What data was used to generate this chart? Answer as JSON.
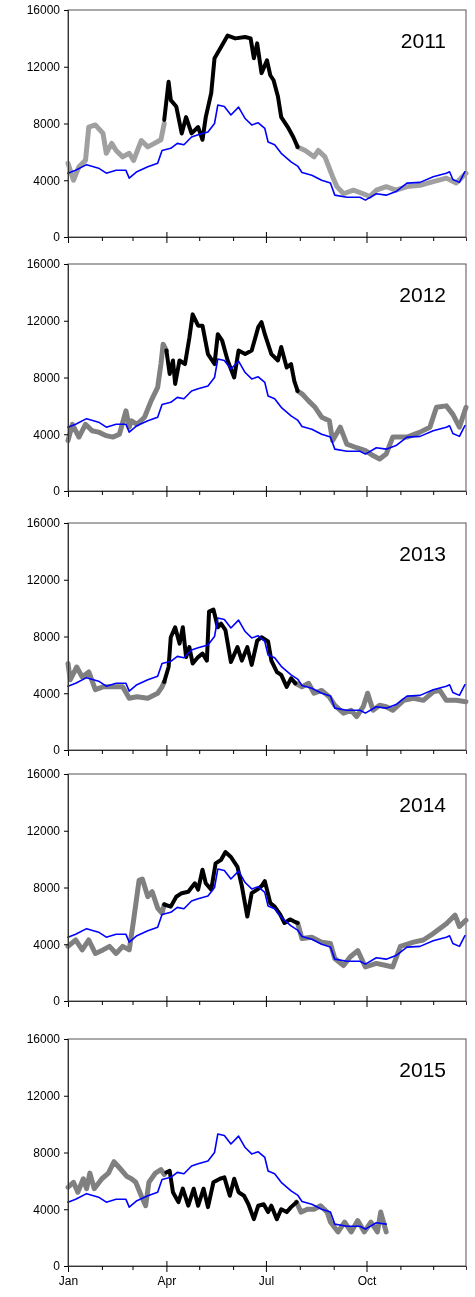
{
  "chart_data": [
    {
      "type": "line",
      "title": "2011",
      "xlim": [
        "--01-01",
        "--12-31"
      ],
      "ylim": [
        0,
        16000
      ],
      "yticks": [
        0,
        4000,
        8000,
        12000,
        16000
      ],
      "tick_labels": "y",
      "xticks": [
        {
          "value": "--01-01",
          "label": null
        },
        {
          "value": "--02-01",
          "label": null
        },
        {
          "value": "--03-01",
          "label": null
        },
        {
          "value": "--04-01",
          "label": null
        },
        {
          "value": "--05-01",
          "label": null
        },
        {
          "value": "--06-01",
          "label": null
        },
        {
          "value": "--07-01",
          "label": null
        },
        {
          "value": "--08-01",
          "label": null
        },
        {
          "value": "--09-01",
          "label": null
        },
        {
          "value": "--10-01",
          "label": null
        },
        {
          "value": "--11-01",
          "label": null
        },
        {
          "value": "--12-01",
          "label": null
        }
      ],
      "series": [
        {
          "color": "#a0a0a0",
          "x": [
            "--01-01",
            "--01-06",
            "--01-11",
            "--01-17",
            "--01-20",
            "--01-26",
            "--02-02",
            "--02-05",
            "--02-10",
            "--02-14",
            "--02-20",
            "--02-26",
            "--03-02",
            "--03-09",
            "--03-15",
            "--03-21",
            "--03-27",
            "--03-30",
            "--06-01",
            "--07-30",
            "--08-06",
            "--08-14",
            "--08-18",
            "--08-24",
            "--08-31",
            "--09-04",
            "--09-10",
            "--09-19",
            "--09-28",
            "--10-04",
            "--10-10",
            "--10-19",
            "--10-28",
            "--11-07",
            "--11-19",
            "--12-01",
            "--12-13",
            "--12-22",
            "--12-31"
          ],
          "values": [
            5200,
            4000,
            4950,
            5400,
            7750,
            7900,
            7300,
            5900,
            6600,
            6100,
            5650,
            5900,
            5400,
            6800,
            6350,
            6600,
            6850,
            8000,
            null,
            6350,
            6100,
            5650,
            6100,
            5650,
            4250,
            3550,
            3050,
            3300,
            3050,
            2850,
            3300,
            3550,
            3300,
            3550,
            3650,
            3900,
            4150,
            3800,
            4500
          ]
        },
        {
          "color": "#000000",
          "x": [
            "--03-30",
            "--04-03",
            "--04-05",
            "--04-10",
            "--04-15",
            "--04-19",
            "--04-24",
            "--04-30",
            "--05-04",
            "--05-07",
            "--05-12",
            "--05-15",
            "--05-21",
            "--05-27",
            "--06-03",
            "--06-12",
            "--06-17",
            "--06-20",
            "--06-23",
            "--06-27",
            "--07-02",
            "--07-05",
            "--07-08",
            "--07-12",
            "--07-15",
            "--07-21",
            "--07-26",
            "--07-30"
          ],
          "values": [
            8250,
            10950,
            9650,
            9200,
            7300,
            8450,
            7300,
            7750,
            6850,
            8450,
            10150,
            12600,
            13400,
            14200,
            14000,
            14100,
            14000,
            12600,
            13650,
            11550,
            12450,
            11400,
            11050,
            9900,
            8450,
            7750,
            7050,
            6350
          ]
        },
        {
          "color": "#0000ff",
          "x": [
            "--01-01",
            "--01-08",
            "--01-18",
            "--01-29",
            "--02-05",
            "--02-14",
            "--02-23",
            "--02-26",
            "--03-05",
            "--03-15",
            "--03-24",
            "--03-28",
            "--04-05",
            "--04-11",
            "--04-17",
            "--04-24",
            "--04-30",
            "--05-09",
            "--05-15",
            "--05-18",
            "--05-24",
            "--05-30",
            "--06-06",
            "--06-12",
            "--06-18",
            "--06-24",
            "--06-30",
            "--07-03",
            "--07-09",
            "--07-15",
            "--07-24",
            "--07-30",
            "--08-03",
            "--08-12",
            "--08-21",
            "--08-29",
            "--09-02",
            "--09-13",
            "--09-25",
            "--09-30",
            "--10-10",
            "--10-19",
            "--10-28",
            "--11-07",
            "--11-19",
            "--12-01",
            "--12-13",
            "--12-16",
            "--12-19",
            "--12-25",
            "--12-30"
          ],
          "values": [
            4500,
            4700,
            5100,
            4850,
            4500,
            4700,
            4700,
            4150,
            4600,
            4950,
            5200,
            6100,
            6250,
            6600,
            6500,
            7050,
            7200,
            7400,
            8000,
            9300,
            9200,
            8600,
            9150,
            8350,
            7900,
            8050,
            7650,
            6700,
            6500,
            5900,
            5300,
            5000,
            4550,
            4350,
            4000,
            3800,
            2950,
            2800,
            2800,
            2600,
            3050,
            2950,
            3200,
            3800,
            3850,
            4250,
            4500,
            4600,
            4050,
            3850,
            4600
          ]
        }
      ]
    },
    {
      "type": "line",
      "title": "2012",
      "xlim": [
        "--01-01",
        "--12-31"
      ],
      "ylim": [
        0,
        16000
      ],
      "yticks": [
        0,
        4000,
        8000,
        12000,
        16000
      ],
      "tick_labels": "y",
      "xticks": [
        {
          "value": "--01-01",
          "label": null
        },
        {
          "value": "--02-01",
          "label": null
        },
        {
          "value": "--03-01",
          "label": null
        },
        {
          "value": "--04-01",
          "label": null
        },
        {
          "value": "--05-01",
          "label": null
        },
        {
          "value": "--06-01",
          "label": null
        },
        {
          "value": "--07-01",
          "label": null
        },
        {
          "value": "--08-01",
          "label": null
        },
        {
          "value": "--09-01",
          "label": null
        },
        {
          "value": "--10-01",
          "label": null
        },
        {
          "value": "--11-01",
          "label": null
        },
        {
          "value": "--12-01",
          "label": null
        }
      ],
      "series": [
        {
          "color": "#808080",
          "x": [
            "--01-01",
            "--01-05",
            "--01-11",
            "--01-17",
            "--01-23",
            "--01-29",
            "--02-05",
            "--02-11",
            "--02-17",
            "--02-23",
            "--02-26",
            "--02-28",
            "--03-05",
            "--03-12",
            "--03-18",
            "--03-24",
            "--03-27",
            "--03-29",
            "--04-01",
            "--06-01",
            "--07-30",
            "--08-03",
            "--08-09",
            "--08-15",
            "--08-21",
            "--08-28",
            "--08-31",
            "--09-07",
            "--09-13",
            "--09-22",
            "--09-30",
            "--10-07",
            "--10-13",
            "--10-19",
            "--10-25",
            "--11-07",
            "--11-19",
            "--11-28",
            "--12-04",
            "--12-13",
            "--12-19",
            "--12-25",
            "--12-31"
          ],
          "values": [
            3550,
            4700,
            3800,
            4700,
            4250,
            4150,
            3900,
            3800,
            4000,
            5650,
            4500,
            4950,
            4700,
            5200,
            6350,
            7300,
            8950,
            10350,
            9900,
            null,
            7050,
            6850,
            6350,
            5900,
            5200,
            4950,
            3550,
            4500,
            3300,
            3050,
            2850,
            2500,
            2250,
            2600,
            3800,
            3800,
            4150,
            4500,
            5900,
            6000,
            5400,
            4500,
            5900
          ]
        },
        {
          "color": "#000000",
          "x": [
            "--04-01",
            "--04-04",
            "--04-07",
            "--04-09",
            "--04-13",
            "--04-18",
            "--04-22",
            "--04-25",
            "--04-30",
            "--05-04",
            "--05-09",
            "--05-15",
            "--05-18",
            "--05-22",
            "--05-27",
            "--06-02",
            "--06-06",
            "--06-12",
            "--06-18",
            "--06-24",
            "--06-27",
            "--06-30",
            "--07-06",
            "--07-12",
            "--07-15",
            "--07-20",
            "--07-24",
            "--07-27",
            "--07-30"
          ],
          "values": [
            9900,
            8250,
            9200,
            7550,
            9200,
            8950,
            10800,
            12450,
            11650,
            11650,
            9650,
            8950,
            11050,
            10600,
            9200,
            8000,
            9900,
            9650,
            9900,
            11550,
            11900,
            11050,
            9650,
            9200,
            10150,
            8700,
            8950,
            7750,
            7050
          ]
        },
        {
          "color": "#0000ff",
          "x": [
            "--01-01",
            "--01-08",
            "--01-18",
            "--01-29",
            "--02-05",
            "--02-14",
            "--02-23",
            "--02-26",
            "--03-05",
            "--03-15",
            "--03-24",
            "--03-28",
            "--04-05",
            "--04-11",
            "--04-17",
            "--04-24",
            "--04-30",
            "--05-09",
            "--05-15",
            "--05-18",
            "--05-24",
            "--05-30",
            "--06-06",
            "--06-12",
            "--06-18",
            "--06-24",
            "--06-30",
            "--07-03",
            "--07-09",
            "--07-15",
            "--07-24",
            "--07-30",
            "--08-03",
            "--08-12",
            "--08-21",
            "--08-29",
            "--09-02",
            "--09-13",
            "--09-25",
            "--09-30",
            "--10-10",
            "--10-19",
            "--10-28",
            "--11-07",
            "--11-19",
            "--12-01",
            "--12-13",
            "--12-16",
            "--12-19",
            "--12-25",
            "--12-30"
          ],
          "values": [
            4500,
            4700,
            5100,
            4850,
            4500,
            4700,
            4700,
            4150,
            4600,
            4950,
            5200,
            6100,
            6250,
            6600,
            6500,
            7050,
            7200,
            7400,
            8000,
            9300,
            9200,
            8600,
            9150,
            8350,
            7900,
            8050,
            7650,
            6700,
            6500,
            5900,
            5300,
            5000,
            4550,
            4350,
            4000,
            3800,
            2950,
            2800,
            2800,
            2600,
            3050,
            2950,
            3200,
            3800,
            3850,
            4250,
            4500,
            4600,
            4050,
            3850,
            4600
          ]
        }
      ]
    },
    {
      "type": "line",
      "title": "2013",
      "xlim": [
        "--01-01",
        "--12-31"
      ],
      "ylim": [
        0,
        16000
      ],
      "yticks": [
        0,
        4000,
        8000,
        12000,
        16000
      ],
      "tick_labels": "y",
      "xticks": [
        {
          "value": "--01-01",
          "label": null
        },
        {
          "value": "--02-01",
          "label": null
        },
        {
          "value": "--03-01",
          "label": null
        },
        {
          "value": "--04-01",
          "label": null
        },
        {
          "value": "--05-01",
          "label": null
        },
        {
          "value": "--06-01",
          "label": null
        },
        {
          "value": "--07-01",
          "label": null
        },
        {
          "value": "--08-01",
          "label": null
        },
        {
          "value": "--09-01",
          "label": null
        },
        {
          "value": "--10-01",
          "label": null
        },
        {
          "value": "--11-01",
          "label": null
        },
        {
          "value": "--12-01",
          "label": null
        }
      ],
      "series": [
        {
          "color": "#808080",
          "x": [
            "--01-01",
            "--01-03",
            "--01-09",
            "--01-14",
            "--01-20",
            "--01-26",
            "--02-02",
            "--02-11",
            "--02-20",
            "--02-26",
            "--03-05",
            "--03-15",
            "--03-24",
            "--03-28",
            "--03-30",
            "--06-01",
            "--07-28",
            "--08-03",
            "--08-09",
            "--08-14",
            "--08-21",
            "--08-28",
            "--09-02",
            "--09-10",
            "--09-17",
            "--09-22",
            "--09-28",
            "--10-02",
            "--10-07",
            "--10-13",
            "--10-19",
            "--10-25",
            "--11-04",
            "--11-13",
            "--11-22",
            "--12-01",
            "--12-07",
            "--12-13",
            "--12-22",
            "--12-31"
          ],
          "values": [
            6100,
            4950,
            5850,
            5150,
            5500,
            4250,
            4450,
            4450,
            4450,
            3650,
            3750,
            3650,
            4000,
            4450,
            4800,
            null,
            4700,
            4450,
            4700,
            4000,
            4200,
            3750,
            3150,
            2600,
            2800,
            2350,
            3050,
            4000,
            2800,
            3150,
            3050,
            2800,
            3500,
            3650,
            3500,
            4100,
            4200,
            3500,
            3500,
            3400
          ]
        },
        {
          "color": "#000000",
          "x": [
            "--03-30",
            "--04-03",
            "--04-05",
            "--04-09",
            "--04-13",
            "--04-16",
            "--04-19",
            "--04-22",
            "--04-25",
            "--04-30",
            "--05-04",
            "--05-08",
            "--05-10",
            "--05-14",
            "--05-18",
            "--05-21",
            "--05-25",
            "--05-30",
            "--06-05",
            "--06-09",
            "--06-14",
            "--06-18",
            "--06-23",
            "--06-27",
            "--07-03",
            "--07-06",
            "--07-11",
            "--07-15",
            "--07-20",
            "--07-24",
            "--07-28"
          ],
          "values": [
            4800,
            5850,
            7950,
            8650,
            7500,
            8650,
            6550,
            7250,
            6100,
            6550,
            6800,
            6300,
            9750,
            9900,
            8650,
            8900,
            8450,
            6200,
            7250,
            6300,
            7250,
            6000,
            7700,
            7950,
            7650,
            6300,
            5500,
            5300,
            4450,
            5050,
            4700
          ]
        },
        {
          "color": "#0000ff",
          "x": [
            "--01-01",
            "--01-08",
            "--01-18",
            "--01-29",
            "--02-05",
            "--02-14",
            "--02-23",
            "--02-26",
            "--03-05",
            "--03-15",
            "--03-24",
            "--03-28",
            "--04-05",
            "--04-11",
            "--04-17",
            "--04-24",
            "--04-30",
            "--05-09",
            "--05-15",
            "--05-18",
            "--05-24",
            "--05-30",
            "--06-06",
            "--06-12",
            "--06-18",
            "--06-24",
            "--06-30",
            "--07-03",
            "--07-09",
            "--07-15",
            "--07-24",
            "--07-30",
            "--08-03",
            "--08-12",
            "--08-21",
            "--08-29",
            "--09-02",
            "--09-13",
            "--09-25",
            "--09-30",
            "--10-10",
            "--10-19",
            "--10-28",
            "--11-07",
            "--11-19",
            "--12-01",
            "--12-13",
            "--12-16",
            "--12-19",
            "--12-25",
            "--12-30"
          ],
          "values": [
            4500,
            4700,
            5100,
            4850,
            4500,
            4700,
            4700,
            4150,
            4600,
            4950,
            5200,
            6100,
            6250,
            6600,
            6500,
            7050,
            7200,
            7400,
            8000,
            9300,
            9200,
            8600,
            9150,
            8350,
            7900,
            8050,
            7650,
            6700,
            6500,
            5900,
            5300,
            5000,
            4550,
            4350,
            4000,
            3800,
            2950,
            2800,
            2800,
            2600,
            3050,
            2950,
            3200,
            3800,
            3850,
            4250,
            4500,
            4600,
            4050,
            3850,
            4600
          ]
        }
      ]
    },
    {
      "type": "line",
      "title": "2014",
      "xlim": [
        "--01-01",
        "--12-31"
      ],
      "ylim": [
        0,
        16000
      ],
      "yticks": [
        0,
        4000,
        8000,
        12000,
        16000
      ],
      "tick_labels": "y",
      "xticks": [
        {
          "value": "--01-01",
          "label": null
        },
        {
          "value": "--02-01",
          "label": null
        },
        {
          "value": "--03-01",
          "label": null
        },
        {
          "value": "--04-01",
          "label": null
        },
        {
          "value": "--05-01",
          "label": null
        },
        {
          "value": "--06-01",
          "label": null
        },
        {
          "value": "--07-01",
          "label": null
        },
        {
          "value": "--08-01",
          "label": null
        },
        {
          "value": "--09-01",
          "label": null
        },
        {
          "value": "--10-01",
          "label": null
        },
        {
          "value": "--11-01",
          "label": null
        },
        {
          "value": "--12-01",
          "label": null
        }
      ],
      "series": [
        {
          "color": "#808080",
          "x": [
            "--01-01",
            "--01-08",
            "--01-14",
            "--01-20",
            "--01-26",
            "--02-02",
            "--02-08",
            "--02-14",
            "--02-20",
            "--02-26",
            "--03-02",
            "--03-07",
            "--03-10",
            "--03-15",
            "--03-19",
            "--03-24",
            "--03-28",
            "--03-30",
            "--06-01",
            "--07-30",
            "--08-03",
            "--08-12",
            "--08-21",
            "--08-29",
            "--09-02",
            "--09-10",
            "--09-16",
            "--09-23",
            "--09-30",
            "--10-10",
            "--10-19",
            "--10-25",
            "--11-01",
            "--11-13",
            "--11-22",
            "--12-01",
            "--12-13",
            "--12-21",
            "--12-25",
            "--12-31"
          ],
          "values": [
            3850,
            4300,
            3600,
            4300,
            3350,
            3600,
            3850,
            3350,
            3850,
            3600,
            5700,
            8500,
            8600,
            7350,
            7700,
            6550,
            6200,
            6800,
            null,
            5500,
            4400,
            4500,
            4150,
            4050,
            3000,
            2500,
            3100,
            3550,
            2400,
            2650,
            2500,
            2400,
            3850,
            4150,
            4300,
            4750,
            5450,
            6050,
            5250,
            5700
          ]
        },
        {
          "color": "#000000",
          "x": [
            "--03-30",
            "--04-05",
            "--04-10",
            "--04-15",
            "--04-21",
            "--04-27",
            "--04-30",
            "--05-04",
            "--05-07",
            "--05-12",
            "--05-16",
            "--05-21",
            "--05-25",
            "--05-30",
            "--06-05",
            "--06-09",
            "--06-14",
            "--06-18",
            "--06-23",
            "--06-27",
            "--06-30",
            "--07-05",
            "--07-09",
            "--07-14",
            "--07-18",
            "--07-23",
            "--07-27",
            "--07-30"
          ],
          "values": [
            6800,
            6650,
            7350,
            7600,
            7700,
            8300,
            7850,
            9250,
            8300,
            7850,
            9700,
            9950,
            10500,
            10150,
            9450,
            8100,
            5950,
            7600,
            7850,
            8100,
            8450,
            6900,
            6650,
            6100,
            5500,
            5750,
            5600,
            5500
          ]
        },
        {
          "color": "#0000ff",
          "x": [
            "--01-01",
            "--01-08",
            "--01-18",
            "--01-29",
            "--02-05",
            "--02-14",
            "--02-23",
            "--02-26",
            "--03-05",
            "--03-15",
            "--03-24",
            "--03-28",
            "--04-05",
            "--04-11",
            "--04-17",
            "--04-24",
            "--04-30",
            "--05-09",
            "--05-15",
            "--05-18",
            "--05-24",
            "--05-30",
            "--06-06",
            "--06-12",
            "--06-18",
            "--06-24",
            "--06-30",
            "--07-03",
            "--07-09",
            "--07-15",
            "--07-24",
            "--07-30",
            "--08-03",
            "--08-12",
            "--08-21",
            "--08-29",
            "--09-02",
            "--09-13",
            "--09-25",
            "--09-30",
            "--10-10",
            "--10-19",
            "--10-28",
            "--11-07",
            "--11-19",
            "--12-01",
            "--12-13",
            "--12-16",
            "--12-19",
            "--12-25",
            "--12-30"
          ],
          "values": [
            4500,
            4700,
            5100,
            4850,
            4500,
            4700,
            4700,
            4150,
            4600,
            4950,
            5200,
            6100,
            6250,
            6600,
            6500,
            7050,
            7200,
            7400,
            8000,
            9300,
            9200,
            8600,
            9150,
            8350,
            7900,
            8050,
            7650,
            6700,
            6500,
            5900,
            5300,
            5000,
            4550,
            4350,
            4000,
            3800,
            2950,
            2800,
            2800,
            2600,
            3050,
            2950,
            3200,
            3800,
            3850,
            4250,
            4500,
            4600,
            4050,
            3850,
            4600
          ]
        }
      ]
    },
    {
      "type": "line",
      "title": "2015",
      "xlim": [
        "--01-01",
        "--12-31"
      ],
      "ylim": [
        0,
        16000
      ],
      "yticks": [
        0,
        4000,
        8000,
        12000,
        16000
      ],
      "xticks": [
        {
          "value": "--01-01",
          "label": "Jan"
        },
        {
          "value": "--02-01",
          "label": null
        },
        {
          "value": "--03-01",
          "label": null
        },
        {
          "value": "--04-01",
          "label": "Apr"
        },
        {
          "value": "--05-01",
          "label": null
        },
        {
          "value": "--06-01",
          "label": null
        },
        {
          "value": "--07-01",
          "label": "Jul"
        },
        {
          "value": "--08-01",
          "label": null
        },
        {
          "value": "--09-01",
          "label": null
        },
        {
          "value": "--10-01",
          "label": "Oct"
        },
        {
          "value": "--11-01",
          "label": null
        },
        {
          "value": "--12-01",
          "label": null
        }
      ],
      "series": [
        {
          "color": "#808080",
          "x": [
            "--01-01",
            "--01-06",
            "--01-10",
            "--01-15",
            "--01-18",
            "--01-21",
            "--01-25",
            "--02-01",
            "--02-07",
            "--02-12",
            "--02-15",
            "--02-19",
            "--02-24",
            "--02-28",
            "--03-04",
            "--03-09",
            "--03-13",
            "--03-16",
            "--03-22",
            "--03-27",
            "--03-30",
            "--06-01",
            "--07-29",
            "--08-02",
            "--08-08",
            "--08-14",
            "--08-20",
            "--08-26",
            "--08-29",
            "--09-05",
            "--09-11",
            "--09-17",
            "--09-23",
            "--09-29",
            "--10-05",
            "--10-11",
            "--10-14",
            "--10-19"
          ],
          "values": [
            5550,
            5900,
            5200,
            6150,
            5450,
            6550,
            5450,
            6150,
            6550,
            7350,
            7100,
            6750,
            6300,
            6150,
            5900,
            4950,
            4250,
            5900,
            6550,
            6800,
            6450,
            null,
            4500,
            3800,
            4000,
            4000,
            4250,
            3800,
            3100,
            2400,
            3100,
            2400,
            3200,
            2400,
            3100,
            2400,
            3800,
            2400
          ]
        },
        {
          "color": "#000000",
          "x": [
            "--04-01",
            "--04-04",
            "--04-07",
            "--04-12",
            "--04-16",
            "--04-21",
            "--04-26",
            "--04-30",
            "--05-05",
            "--05-09",
            "--05-14",
            "--05-20",
            "--05-24",
            "--05-29",
            "--06-02",
            "--06-06",
            "--06-11",
            "--06-15",
            "--06-20",
            "--06-24",
            "--06-29",
            "--07-03",
            "--07-06",
            "--07-11",
            "--07-15",
            "--07-20",
            "--07-24",
            "--07-29"
          ],
          "values": [
            6600,
            6700,
            5200,
            4500,
            5450,
            4250,
            5450,
            4250,
            5450,
            4150,
            5900,
            6150,
            6250,
            4950,
            6150,
            5200,
            4950,
            4350,
            3300,
            4250,
            4350,
            3800,
            4250,
            3300,
            4000,
            3800,
            4150,
            4500
          ]
        },
        {
          "color": "#0000ff",
          "x": [
            "--01-01",
            "--01-08",
            "--01-18",
            "--01-29",
            "--02-05",
            "--02-14",
            "--02-23",
            "--02-26",
            "--03-05",
            "--03-15",
            "--03-24",
            "--03-28",
            "--04-05",
            "--04-11",
            "--04-17",
            "--04-24",
            "--04-30",
            "--05-09",
            "--05-15",
            "--05-18",
            "--05-24",
            "--05-30",
            "--06-06",
            "--06-12",
            "--06-18",
            "--06-24",
            "--06-30",
            "--07-03",
            "--07-09",
            "--07-15",
            "--07-24",
            "--07-30",
            "--08-03",
            "--08-12",
            "--08-21",
            "--08-29",
            "--09-02",
            "--09-13",
            "--09-25",
            "--09-30",
            "--10-10",
            "--10-19"
          ],
          "values": [
            4500,
            4700,
            5100,
            4850,
            4500,
            4700,
            4700,
            4150,
            4600,
            4950,
            5200,
            6100,
            6250,
            6600,
            6500,
            7050,
            7200,
            7400,
            8000,
            9300,
            9200,
            8600,
            9150,
            8350,
            7900,
            8050,
            7650,
            6700,
            6500,
            5900,
            5300,
            5000,
            4550,
            4350,
            4000,
            3800,
            2950,
            2800,
            2800,
            2600,
            3050,
            2950
          ]
        }
      ]
    }
  ]
}
